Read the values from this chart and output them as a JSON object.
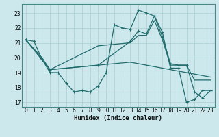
{
  "xlabel": "Humidex (Indice chaleur)",
  "bg_color": "#cce8ed",
  "line_color": "#1f6b6b",
  "grid_color": "#aacfcf",
  "xlim": [
    -0.5,
    23.5
  ],
  "ylim": [
    16.7,
    23.6
  ],
  "yticks": [
    17,
    18,
    19,
    20,
    21,
    22,
    23
  ],
  "xticks": [
    0,
    1,
    2,
    3,
    4,
    5,
    6,
    7,
    8,
    9,
    10,
    11,
    12,
    13,
    14,
    15,
    16,
    17,
    18,
    19,
    20,
    21,
    22,
    23
  ],
  "line1_x": [
    0,
    1,
    2,
    3,
    4,
    5,
    6,
    7,
    8,
    9,
    10,
    11,
    12,
    13,
    14,
    15,
    16,
    17,
    18,
    19,
    20,
    21,
    22,
    23
  ],
  "line1_y": [
    21.2,
    21.1,
    19.9,
    19.0,
    19.0,
    18.3,
    17.7,
    17.8,
    17.7,
    18.1,
    19.0,
    22.2,
    22.0,
    21.9,
    23.2,
    23.0,
    22.8,
    21.7,
    19.3,
    19.3,
    17.0,
    17.2,
    17.8,
    17.8
  ],
  "line2_x": [
    0,
    2,
    3,
    9,
    13,
    14,
    15,
    16,
    17,
    18,
    19,
    20,
    21,
    22,
    23
  ],
  "line2_y": [
    21.2,
    20.0,
    19.2,
    19.5,
    21.1,
    21.8,
    21.6,
    22.8,
    21.4,
    19.6,
    19.5,
    19.5,
    17.7,
    17.3,
    17.8
  ],
  "line3_x": [
    0,
    3,
    9,
    13,
    14,
    15,
    16,
    17,
    18,
    19,
    20,
    21,
    22,
    23
  ],
  "line3_y": [
    21.2,
    19.2,
    19.5,
    19.7,
    19.6,
    19.5,
    19.4,
    19.3,
    19.2,
    19.1,
    19.0,
    18.9,
    18.8,
    18.7
  ],
  "line4_x": [
    0,
    3,
    9,
    13,
    14,
    15,
    16,
    17,
    18,
    19,
    20,
    21,
    22,
    23
  ],
  "line4_y": [
    21.2,
    19.2,
    20.8,
    21.0,
    21.5,
    21.5,
    22.5,
    21.2,
    19.5,
    19.5,
    19.5,
    18.5,
    18.5,
    18.5
  ],
  "tick_fontsize": 5.5,
  "xlabel_fontsize": 6.5,
  "lw": 0.9
}
